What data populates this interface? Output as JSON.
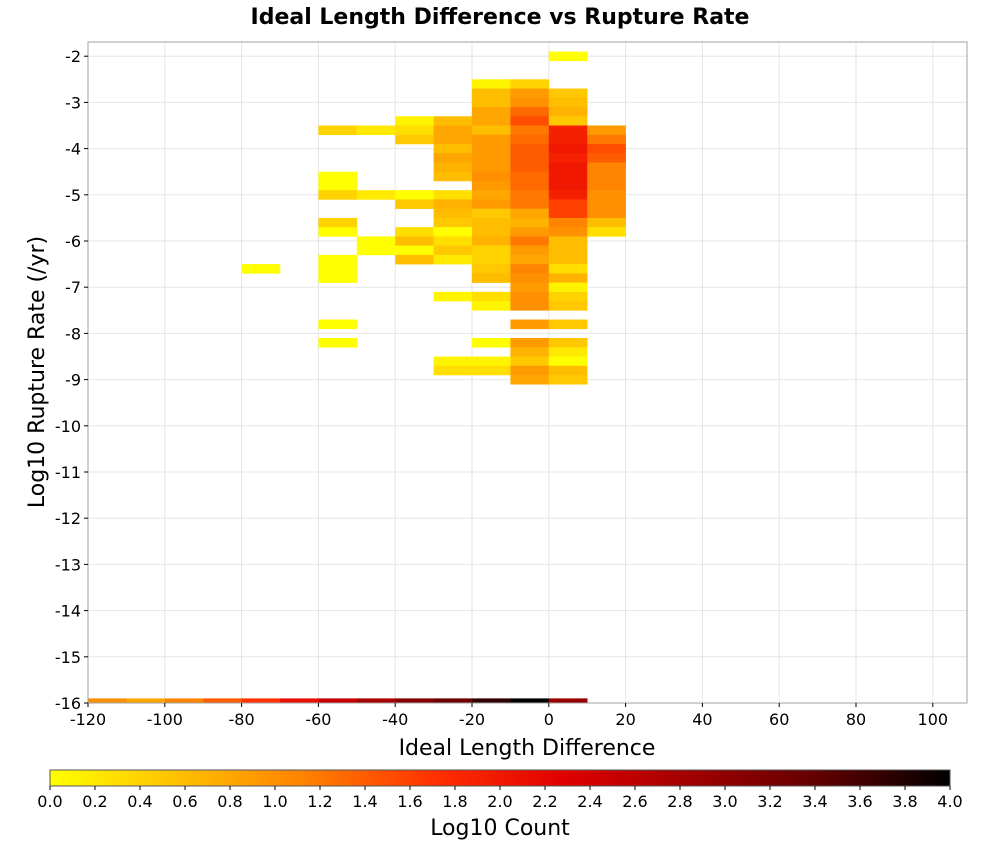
{
  "chart_data": {
    "type": "heatmap",
    "title": "Ideal Length Difference vs Rupture Rate",
    "xlabel": "Ideal Length Difference",
    "ylabel": "Log10 Rupture Rate (/yr)",
    "colorbar_label": "Log10 Count",
    "xlim": [
      -120,
      110
    ],
    "ylim": [
      -16,
      -1.7
    ],
    "x_ticks": [
      -120,
      -100,
      -80,
      -60,
      -40,
      -20,
      0,
      20,
      40,
      60,
      80,
      100
    ],
    "y_ticks": [
      -2,
      -3,
      -4,
      -5,
      -6,
      -7,
      -8,
      -9,
      -10,
      -11,
      -12,
      -13,
      -14,
      -15,
      -16
    ],
    "colorbar_range": [
      0.0,
      4.0
    ],
    "colorbar_ticks": [
      "0.0",
      "0.2",
      "0.4",
      "0.6",
      "0.8",
      "1.0",
      "1.2",
      "1.4",
      "1.6",
      "1.8",
      "2.0",
      "2.2",
      "2.4",
      "2.6",
      "2.8",
      "3.0",
      "3.2",
      "3.4",
      "3.6",
      "3.8",
      "4.0"
    ],
    "colormap": [
      "#ffff00",
      "#ffc000",
      "#ff8000",
      "#ff3000",
      "#e00000",
      "#a00000",
      "#600000",
      "#000000"
    ],
    "grid": true,
    "bin_width_x": 10,
    "bin_height_y": 0.2,
    "cells": [
      {
        "x": 0,
        "y": -2.0,
        "v": 0.0
      },
      {
        "x": -20,
        "y": -2.6,
        "v": 0.1
      },
      {
        "x": -10,
        "y": -2.6,
        "v": 0.4
      },
      {
        "x": -20,
        "y": -2.8,
        "v": 0.6
      },
      {
        "x": -10,
        "y": -2.8,
        "v": 0.9
      },
      {
        "x": 0,
        "y": -2.8,
        "v": 0.5
      },
      {
        "x": -20,
        "y": -3.0,
        "v": 0.6
      },
      {
        "x": -10,
        "y": -3.0,
        "v": 1.0
      },
      {
        "x": 0,
        "y": -3.0,
        "v": 0.6
      },
      {
        "x": -20,
        "y": -3.2,
        "v": 0.8
      },
      {
        "x": -10,
        "y": -3.2,
        "v": 1.3
      },
      {
        "x": 0,
        "y": -3.2,
        "v": 0.7
      },
      {
        "x": -40,
        "y": -3.4,
        "v": 0.1
      },
      {
        "x": -30,
        "y": -3.4,
        "v": 0.6
      },
      {
        "x": -20,
        "y": -3.4,
        "v": 0.8
      },
      {
        "x": -10,
        "y": -3.4,
        "v": 1.5
      },
      {
        "x": 0,
        "y": -3.4,
        "v": 0.5
      },
      {
        "x": -60,
        "y": -3.6,
        "v": 0.4
      },
      {
        "x": -50,
        "y": -3.6,
        "v": 0.2
      },
      {
        "x": -40,
        "y": -3.6,
        "v": 0.3
      },
      {
        "x": -30,
        "y": -3.6,
        "v": 0.8
      },
      {
        "x": -20,
        "y": -3.6,
        "v": 0.6
      },
      {
        "x": -10,
        "y": -3.6,
        "v": 1.2
      },
      {
        "x": 0,
        "y": -3.6,
        "v": 1.9
      },
      {
        "x": 10,
        "y": -3.6,
        "v": 0.9
      },
      {
        "x": -40,
        "y": -3.8,
        "v": 0.5
      },
      {
        "x": -30,
        "y": -3.8,
        "v": 0.8
      },
      {
        "x": -20,
        "y": -3.8,
        "v": 0.9
      },
      {
        "x": -10,
        "y": -3.8,
        "v": 1.3
      },
      {
        "x": 0,
        "y": -3.8,
        "v": 1.9
      },
      {
        "x": 10,
        "y": -3.8,
        "v": 1.2
      },
      {
        "x": -30,
        "y": -4.0,
        "v": 0.6
      },
      {
        "x": -20,
        "y": -4.0,
        "v": 0.9
      },
      {
        "x": -10,
        "y": -4.0,
        "v": 1.4
      },
      {
        "x": 0,
        "y": -4.0,
        "v": 2.0
      },
      {
        "x": 10,
        "y": -4.0,
        "v": 1.5
      },
      {
        "x": -30,
        "y": -4.2,
        "v": 0.8
      },
      {
        "x": -20,
        "y": -4.2,
        "v": 0.9
      },
      {
        "x": -10,
        "y": -4.2,
        "v": 1.4
      },
      {
        "x": 0,
        "y": -4.2,
        "v": 1.9
      },
      {
        "x": 10,
        "y": -4.2,
        "v": 1.4
      },
      {
        "x": -30,
        "y": -4.4,
        "v": 0.7
      },
      {
        "x": -20,
        "y": -4.4,
        "v": 0.9
      },
      {
        "x": -10,
        "y": -4.4,
        "v": 1.4
      },
      {
        "x": 0,
        "y": -4.4,
        "v": 2.0
      },
      {
        "x": 10,
        "y": -4.4,
        "v": 1.1
      },
      {
        "x": -60,
        "y": -4.6,
        "v": 0.0
      },
      {
        "x": -30,
        "y": -4.6,
        "v": 0.6
      },
      {
        "x": -20,
        "y": -4.6,
        "v": 1.0
      },
      {
        "x": -10,
        "y": -4.6,
        "v": 1.3
      },
      {
        "x": 0,
        "y": -4.6,
        "v": 2.0
      },
      {
        "x": 10,
        "y": -4.6,
        "v": 1.1
      },
      {
        "x": -60,
        "y": -4.8,
        "v": 0.0
      },
      {
        "x": -20,
        "y": -4.8,
        "v": 0.9
      },
      {
        "x": -10,
        "y": -4.8,
        "v": 1.3
      },
      {
        "x": 0,
        "y": -4.8,
        "v": 2.0
      },
      {
        "x": 10,
        "y": -4.8,
        "v": 1.1
      },
      {
        "x": -60,
        "y": -5.0,
        "v": 0.4
      },
      {
        "x": -50,
        "y": -5.0,
        "v": 0.2
      },
      {
        "x": -40,
        "y": -5.0,
        "v": 0.0
      },
      {
        "x": -30,
        "y": -5.0,
        "v": 0.3
      },
      {
        "x": -20,
        "y": -5.0,
        "v": 0.8
      },
      {
        "x": -10,
        "y": -5.0,
        "v": 1.2
      },
      {
        "x": 0,
        "y": -5.0,
        "v": 1.9
      },
      {
        "x": 10,
        "y": -5.0,
        "v": 1.0
      },
      {
        "x": -40,
        "y": -5.2,
        "v": 0.5
      },
      {
        "x": -30,
        "y": -5.2,
        "v": 0.7
      },
      {
        "x": -20,
        "y": -5.2,
        "v": 0.9
      },
      {
        "x": -10,
        "y": -5.2,
        "v": 1.2
      },
      {
        "x": 0,
        "y": -5.2,
        "v": 1.6
      },
      {
        "x": 10,
        "y": -5.2,
        "v": 1.0
      },
      {
        "x": -30,
        "y": -5.4,
        "v": 0.6
      },
      {
        "x": -20,
        "y": -5.4,
        "v": 0.5
      },
      {
        "x": -10,
        "y": -5.4,
        "v": 0.8
      },
      {
        "x": 0,
        "y": -5.4,
        "v": 1.6
      },
      {
        "x": 10,
        "y": -5.4,
        "v": 1.0
      },
      {
        "x": -60,
        "y": -5.6,
        "v": 0.4
      },
      {
        "x": -30,
        "y": -5.6,
        "v": 0.5
      },
      {
        "x": -20,
        "y": -5.6,
        "v": 0.6
      },
      {
        "x": -10,
        "y": -5.6,
        "v": 0.7
      },
      {
        "x": 0,
        "y": -5.6,
        "v": 1.1
      },
      {
        "x": 10,
        "y": -5.6,
        "v": 0.6
      },
      {
        "x": -60,
        "y": -5.8,
        "v": 0.0
      },
      {
        "x": -40,
        "y": -5.8,
        "v": 0.3
      },
      {
        "x": -30,
        "y": -5.8,
        "v": 0.0
      },
      {
        "x": -20,
        "y": -5.8,
        "v": 0.6
      },
      {
        "x": -10,
        "y": -5.8,
        "v": 0.9
      },
      {
        "x": 0,
        "y": -5.8,
        "v": 1.0
      },
      {
        "x": 10,
        "y": -5.8,
        "v": 0.3
      },
      {
        "x": -50,
        "y": -6.0,
        "v": 0.0
      },
      {
        "x": -40,
        "y": -6.0,
        "v": 0.6
      },
      {
        "x": -30,
        "y": -6.0,
        "v": 0.3
      },
      {
        "x": -20,
        "y": -6.0,
        "v": 0.7
      },
      {
        "x": -10,
        "y": -6.0,
        "v": 1.2
      },
      {
        "x": 0,
        "y": -6.0,
        "v": 0.6
      },
      {
        "x": -50,
        "y": -6.2,
        "v": 0.0
      },
      {
        "x": -40,
        "y": -6.2,
        "v": 0.0
      },
      {
        "x": -30,
        "y": -6.2,
        "v": 0.5
      },
      {
        "x": -20,
        "y": -6.2,
        "v": 0.4
      },
      {
        "x": -10,
        "y": -6.2,
        "v": 0.9
      },
      {
        "x": 0,
        "y": -6.2,
        "v": 0.6
      },
      {
        "x": -60,
        "y": -6.4,
        "v": 0.0
      },
      {
        "x": -40,
        "y": -6.4,
        "v": 0.6
      },
      {
        "x": -30,
        "y": -6.4,
        "v": 0.2
      },
      {
        "x": -20,
        "y": -6.4,
        "v": 0.4
      },
      {
        "x": -10,
        "y": -6.4,
        "v": 0.8
      },
      {
        "x": 0,
        "y": -6.4,
        "v": 0.6
      },
      {
        "x": -80,
        "y": -6.6,
        "v": 0.0
      },
      {
        "x": -60,
        "y": -6.6,
        "v": 0.0
      },
      {
        "x": -20,
        "y": -6.6,
        "v": 0.5
      },
      {
        "x": -10,
        "y": -6.6,
        "v": 1.1
      },
      {
        "x": 0,
        "y": -6.6,
        "v": 0.3
      },
      {
        "x": -60,
        "y": -6.8,
        "v": 0.0
      },
      {
        "x": -20,
        "y": -6.8,
        "v": 0.6
      },
      {
        "x": -10,
        "y": -6.8,
        "v": 1.0
      },
      {
        "x": 0,
        "y": -6.8,
        "v": 0.7
      },
      {
        "x": -10,
        "y": -7.0,
        "v": 0.9
      },
      {
        "x": 0,
        "y": -7.0,
        "v": 0.1
      },
      {
        "x": -30,
        "y": -7.2,
        "v": 0.1
      },
      {
        "x": -20,
        "y": -7.2,
        "v": 0.3
      },
      {
        "x": -10,
        "y": -7.2,
        "v": 1.0
      },
      {
        "x": 0,
        "y": -7.2,
        "v": 0.4
      },
      {
        "x": -20,
        "y": -7.4,
        "v": 0.1
      },
      {
        "x": -10,
        "y": -7.4,
        "v": 1.0
      },
      {
        "x": 0,
        "y": -7.4,
        "v": 0.5
      },
      {
        "x": -60,
        "y": -7.8,
        "v": 0.0
      },
      {
        "x": -10,
        "y": -7.8,
        "v": 0.9
      },
      {
        "x": 0,
        "y": -7.8,
        "v": 0.5
      },
      {
        "x": -60,
        "y": -8.2,
        "v": 0.0
      },
      {
        "x": -20,
        "y": -8.2,
        "v": 0.0
      },
      {
        "x": -10,
        "y": -8.2,
        "v": 0.9
      },
      {
        "x": 0,
        "y": -8.2,
        "v": 0.5
      },
      {
        "x": -10,
        "y": -8.4,
        "v": 0.7
      },
      {
        "x": 0,
        "y": -8.4,
        "v": 0.2
      },
      {
        "x": -30,
        "y": -8.6,
        "v": 0.1
      },
      {
        "x": -20,
        "y": -8.6,
        "v": 0.1
      },
      {
        "x": -10,
        "y": -8.6,
        "v": 0.5
      },
      {
        "x": 0,
        "y": -8.6,
        "v": 0.0
      },
      {
        "x": -30,
        "y": -8.8,
        "v": 0.3
      },
      {
        "x": -20,
        "y": -8.8,
        "v": 0.3
      },
      {
        "x": -10,
        "y": -8.8,
        "v": 0.9
      },
      {
        "x": 0,
        "y": -8.8,
        "v": 0.6
      },
      {
        "x": -10,
        "y": -9.0,
        "v": 0.8
      },
      {
        "x": 0,
        "y": -9.0,
        "v": 0.5
      }
    ],
    "baseline_row": {
      "y": -16,
      "cells": [
        {
          "x": -120,
          "v": 1.0
        },
        {
          "x": -110,
          "v": 0.8
        },
        {
          "x": -100,
          "v": 1.1
        },
        {
          "x": -90,
          "v": 1.4
        },
        {
          "x": -80,
          "v": 1.7
        },
        {
          "x": -70,
          "v": 2.1
        },
        {
          "x": -60,
          "v": 2.5
        },
        {
          "x": -50,
          "v": 2.8
        },
        {
          "x": -40,
          "v": 3.1
        },
        {
          "x": -30,
          "v": 3.3
        },
        {
          "x": -20,
          "v": 3.7
        },
        {
          "x": -10,
          "v": 4.0
        },
        {
          "x": 0,
          "v": 2.9
        }
      ]
    }
  }
}
